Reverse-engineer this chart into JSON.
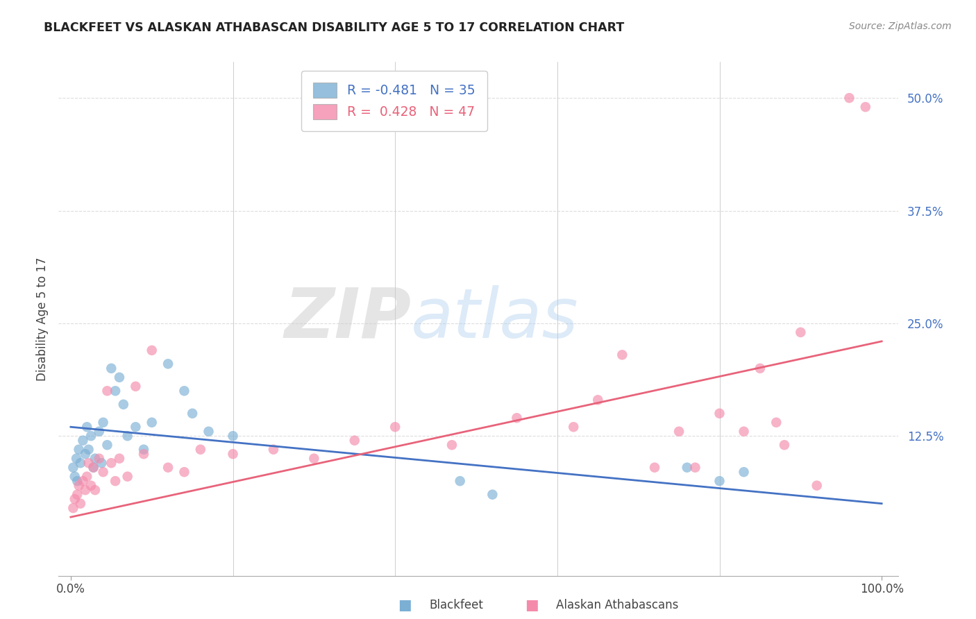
{
  "title": "BLACKFEET VS ALASKAN ATHABASCAN DISABILITY AGE 5 TO 17 CORRELATION CHART",
  "source": "Source: ZipAtlas.com",
  "ylabel": "Disability Age 5 to 17",
  "blue_color": "#7BAFD4",
  "pink_color": "#F48BAB",
  "blue_line_color": "#4472C4",
  "pink_line_color": "#E8637A",
  "legend_label_blue": "Blackfeet",
  "legend_label_pink": "Alaskan Athabascans",
  "R_blue": -0.481,
  "N_blue": 35,
  "R_pink": 0.428,
  "N_pink": 47,
  "blue_x": [
    0.3,
    0.5,
    0.7,
    0.8,
    1.0,
    1.2,
    1.5,
    1.8,
    2.0,
    2.2,
    2.5,
    2.8,
    3.0,
    3.5,
    3.8,
    4.0,
    4.5,
    5.0,
    5.5,
    6.0,
    6.5,
    7.0,
    8.0,
    9.0,
    10.0,
    12.0,
    14.0,
    15.0,
    17.0,
    20.0,
    48.0,
    52.0,
    76.0,
    80.0,
    83.0
  ],
  "blue_y": [
    9.0,
    8.0,
    10.0,
    7.5,
    11.0,
    9.5,
    12.0,
    10.5,
    13.5,
    11.0,
    12.5,
    9.0,
    10.0,
    13.0,
    9.5,
    14.0,
    11.5,
    20.0,
    17.5,
    19.0,
    16.0,
    12.5,
    13.5,
    11.0,
    14.0,
    20.5,
    17.5,
    15.0,
    13.0,
    12.5,
    7.5,
    6.0,
    9.0,
    7.5,
    8.5
  ],
  "pink_x": [
    0.3,
    0.5,
    0.8,
    1.0,
    1.2,
    1.5,
    1.8,
    2.0,
    2.2,
    2.5,
    2.8,
    3.0,
    3.5,
    4.0,
    4.5,
    5.0,
    5.5,
    6.0,
    7.0,
    8.0,
    9.0,
    10.0,
    12.0,
    14.0,
    16.0,
    20.0,
    25.0,
    30.0,
    35.0,
    40.0,
    47.0,
    55.0,
    62.0,
    65.0,
    68.0,
    72.0,
    75.0,
    77.0,
    80.0,
    83.0,
    85.0,
    87.0,
    88.0,
    90.0,
    92.0,
    96.0,
    98.0
  ],
  "pink_y": [
    4.5,
    5.5,
    6.0,
    7.0,
    5.0,
    7.5,
    6.5,
    8.0,
    9.5,
    7.0,
    9.0,
    6.5,
    10.0,
    8.5,
    17.5,
    9.5,
    7.5,
    10.0,
    8.0,
    18.0,
    10.5,
    22.0,
    9.0,
    8.5,
    11.0,
    10.5,
    11.0,
    10.0,
    12.0,
    13.5,
    11.5,
    14.5,
    13.5,
    16.5,
    21.5,
    9.0,
    13.0,
    9.0,
    15.0,
    13.0,
    20.0,
    14.0,
    11.5,
    24.0,
    7.0,
    50.0,
    49.0
  ],
  "blue_trend": [
    13.5,
    5.0
  ],
  "pink_trend": [
    3.5,
    23.0
  ],
  "ytick_vals": [
    0,
    12.5,
    25.0,
    37.5,
    50.0
  ],
  "ytick_labels": [
    "",
    "12.5%",
    "25.0%",
    "37.5%",
    "50.0%"
  ],
  "xtick_vals": [
    0,
    100
  ],
  "xtick_labels": [
    "0.0%",
    "100.0%"
  ],
  "watermark_zip": "ZIP",
  "watermark_atlas": "atlas",
  "background_color": "#FFFFFF",
  "grid_color": "#DDDDDD",
  "ylim": [
    -3,
    54
  ],
  "xlim": [
    -1.5,
    102
  ]
}
